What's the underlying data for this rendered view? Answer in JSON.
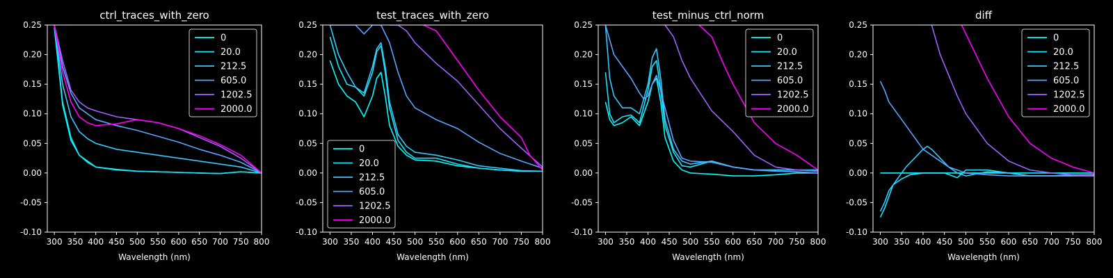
{
  "chart_data": [
    {
      "type": "line",
      "title": "ctrl_traces_with_zero",
      "xlabel": "Wavelength (nm)",
      "ylabel": "",
      "xlim": [
        283,
        800
      ],
      "ylim": [
        -0.1,
        0.25
      ],
      "xticks": [
        300,
        350,
        400,
        450,
        500,
        550,
        600,
        650,
        700,
        750,
        800
      ],
      "yticks": [
        -0.1,
        -0.05,
        0.0,
        0.05,
        0.1,
        0.15,
        0.2,
        0.25
      ],
      "legend": "top-right",
      "series": [
        {
          "name": "0",
          "color": "#00ffff",
          "x": [
            300,
            320,
            340,
            360,
            380,
            400,
            450,
            500,
            550,
            600,
            650,
            700,
            750,
            800
          ],
          "y": [
            0.245,
            0.115,
            0.055,
            0.03,
            0.02,
            0.01,
            0.006,
            0.003,
            0.002,
            0.001,
            0.0,
            -0.001,
            0.002,
            0.0
          ]
        },
        {
          "name": "20.0",
          "color": "#1ae5ff",
          "x": [
            300,
            320,
            340,
            360,
            380,
            400,
            450,
            500,
            550,
            600,
            650,
            700,
            750,
            800
          ],
          "y": [
            0.25,
            0.12,
            0.06,
            0.03,
            0.018,
            0.01,
            0.005,
            0.003,
            0.002,
            0.001,
            0.0,
            -0.001,
            0.002,
            0.0
          ]
        },
        {
          "name": "212.5",
          "color": "#33ccff",
          "x": [
            300,
            320,
            340,
            360,
            380,
            400,
            450,
            500,
            550,
            600,
            650,
            700,
            750,
            800
          ],
          "y": [
            0.25,
            0.15,
            0.095,
            0.07,
            0.058,
            0.05,
            0.04,
            0.035,
            0.03,
            0.025,
            0.02,
            0.015,
            0.01,
            0.0
          ]
        },
        {
          "name": "605.0",
          "color": "#5aa5ff",
          "x": [
            300,
            320,
            340,
            360,
            380,
            400,
            450,
            500,
            550,
            600,
            650,
            700,
            750,
            800
          ],
          "y": [
            0.25,
            0.18,
            0.135,
            0.11,
            0.1,
            0.09,
            0.08,
            0.072,
            0.062,
            0.052,
            0.04,
            0.03,
            0.018,
            0.0
          ]
        },
        {
          "name": "1202.5",
          "color": "#a061ff",
          "x": [
            300,
            320,
            340,
            360,
            380,
            400,
            450,
            500,
            550,
            600,
            650,
            700,
            750,
            800
          ],
          "y": [
            0.25,
            0.19,
            0.14,
            0.12,
            0.11,
            0.105,
            0.095,
            0.09,
            0.085,
            0.075,
            0.06,
            0.045,
            0.025,
            0.0
          ]
        },
        {
          "name": "2000.0",
          "color": "#ff00ff",
          "x": [
            300,
            320,
            340,
            360,
            380,
            400,
            450,
            500,
            550,
            600,
            650,
            700,
            750,
            800
          ],
          "y": [
            0.25,
            0.17,
            0.12,
            0.095,
            0.085,
            0.08,
            0.083,
            0.09,
            0.085,
            0.075,
            0.063,
            0.048,
            0.03,
            0.0
          ]
        }
      ]
    },
    {
      "type": "line",
      "title": "test_traces_with_zero",
      "xlabel": "Wavelength (nm)",
      "ylabel": "",
      "xlim": [
        283,
        800
      ],
      "ylim": [
        -0.1,
        0.25
      ],
      "xticks": [
        300,
        350,
        400,
        450,
        500,
        550,
        600,
        650,
        700,
        750,
        800
      ],
      "yticks": [
        -0.1,
        -0.05,
        0.0,
        0.05,
        0.1,
        0.15,
        0.2,
        0.25
      ],
      "legend": "bottom-left",
      "series": [
        {
          "name": "0",
          "color": "#00ffff",
          "x": [
            300,
            320,
            340,
            360,
            380,
            400,
            410,
            420,
            430,
            440,
            460,
            480,
            500,
            550,
            600,
            650,
            700,
            750,
            800
          ],
          "y": [
            0.19,
            0.15,
            0.13,
            0.12,
            0.095,
            0.13,
            0.16,
            0.17,
            0.13,
            0.08,
            0.045,
            0.03,
            0.022,
            0.02,
            0.012,
            0.008,
            0.005,
            0.003,
            0.003
          ]
        },
        {
          "name": "20.0",
          "color": "#1ae5ff",
          "x": [
            300,
            320,
            340,
            360,
            380,
            400,
            410,
            420,
            430,
            440,
            460,
            480,
            500,
            550,
            600,
            650,
            700,
            750,
            800
          ],
          "y": [
            0.23,
            0.18,
            0.15,
            0.145,
            0.13,
            0.17,
            0.205,
            0.215,
            0.17,
            0.11,
            0.055,
            0.035,
            0.025,
            0.025,
            0.015,
            0.008,
            0.005,
            0.003,
            0.003
          ]
        },
        {
          "name": "212.5",
          "color": "#33ccff",
          "x": [
            300,
            320,
            340,
            360,
            380,
            400,
            410,
            420,
            430,
            440,
            460,
            480,
            500,
            550,
            600,
            650,
            700,
            750,
            800
          ],
          "y": [
            0.25,
            0.2,
            0.17,
            0.145,
            0.135,
            0.18,
            0.21,
            0.22,
            0.18,
            0.12,
            0.065,
            0.045,
            0.035,
            0.03,
            0.022,
            0.012,
            0.008,
            0.004,
            0.003
          ]
        },
        {
          "name": "605.0",
          "color": "#5aa5ff",
          "x": [
            300,
            320,
            340,
            360,
            380,
            400,
            420,
            440,
            460,
            480,
            500,
            550,
            600,
            650,
            700,
            750,
            800
          ],
          "y": [
            0.25,
            0.25,
            0.25,
            0.25,
            0.235,
            0.25,
            0.25,
            0.22,
            0.17,
            0.13,
            0.11,
            0.09,
            0.075,
            0.052,
            0.033,
            0.02,
            0.008
          ]
        },
        {
          "name": "1202.5",
          "color": "#a061ff",
          "x": [
            440,
            460,
            480,
            500,
            550,
            600,
            650,
            700,
            750,
            800
          ],
          "y": [
            0.25,
            0.25,
            0.24,
            0.22,
            0.185,
            0.155,
            0.115,
            0.075,
            0.042,
            0.01
          ]
        },
        {
          "name": "2000.0",
          "color": "#ff00ff",
          "x": [
            520,
            550,
            600,
            650,
            700,
            750,
            770,
            800
          ],
          "y": [
            0.25,
            0.24,
            0.19,
            0.14,
            0.095,
            0.06,
            0.03,
            0.005
          ]
        }
      ]
    },
    {
      "type": "line",
      "title": "test_minus_ctrl_norm",
      "xlabel": "Wavelength (nm)",
      "ylabel": "",
      "xlim": [
        283,
        800
      ],
      "ylim": [
        -0.1,
        0.25
      ],
      "xticks": [
        300,
        350,
        400,
        450,
        500,
        550,
        600,
        650,
        700,
        750,
        800
      ],
      "yticks": [
        -0.1,
        -0.05,
        0.0,
        0.05,
        0.1,
        0.15,
        0.2,
        0.25
      ],
      "legend": "top-right",
      "series": [
        {
          "name": "0",
          "color": "#00ffff",
          "x": [
            300,
            310,
            320,
            340,
            360,
            380,
            400,
            410,
            420,
            430,
            440,
            460,
            480,
            500,
            550,
            600,
            650,
            700,
            750,
            800
          ],
          "y": [
            0.12,
            0.09,
            0.08,
            0.085,
            0.095,
            0.08,
            0.12,
            0.15,
            0.16,
            0.12,
            0.06,
            0.02,
            0.005,
            0.0,
            -0.002,
            -0.005,
            -0.005,
            -0.003,
            0.0,
            0.0
          ]
        },
        {
          "name": "20.0",
          "color": "#1ae5ff",
          "x": [
            300,
            310,
            320,
            340,
            360,
            380,
            400,
            410,
            420,
            430,
            440,
            460,
            480,
            500,
            550,
            600,
            650,
            700,
            750,
            800
          ],
          "y": [
            0.17,
            0.1,
            0.085,
            0.095,
            0.098,
            0.085,
            0.14,
            0.18,
            0.19,
            0.14,
            0.08,
            0.035,
            0.012,
            0.01,
            0.02,
            0.01,
            0.005,
            0.005,
            0.005,
            0.005
          ]
        },
        {
          "name": "212.5",
          "color": "#33ccff",
          "x": [
            300,
            310,
            320,
            340,
            360,
            380,
            400,
            410,
            420,
            430,
            440,
            460,
            480,
            500,
            550,
            600,
            650,
            700,
            750,
            800
          ],
          "y": [
            0.25,
            0.16,
            0.13,
            0.11,
            0.11,
            0.1,
            0.15,
            0.195,
            0.21,
            0.16,
            0.09,
            0.04,
            0.02,
            0.015,
            0.02,
            0.01,
            0.005,
            0.005,
            0.005,
            0.003
          ]
        },
        {
          "name": "605.0",
          "color": "#5aa5ff",
          "x": [
            300,
            320,
            340,
            360,
            380,
            390,
            400,
            410,
            420,
            440,
            460,
            480,
            500,
            550,
            600,
            650,
            700,
            750,
            800
          ],
          "y": [
            0.25,
            0.2,
            0.18,
            0.16,
            0.135,
            0.125,
            0.13,
            0.15,
            0.165,
            0.11,
            0.055,
            0.025,
            0.02,
            0.018,
            0.01,
            0.005,
            0.003,
            0.002,
            0.0
          ]
        },
        {
          "name": "1202.5",
          "color": "#a061ff",
          "x": [
            440,
            460,
            480,
            500,
            550,
            600,
            650,
            700,
            750,
            800
          ],
          "y": [
            0.25,
            0.23,
            0.19,
            0.16,
            0.105,
            0.07,
            0.03,
            0.01,
            0.005,
            0.003
          ]
        },
        {
          "name": "2000.0",
          "color": "#ff00ff",
          "x": [
            520,
            550,
            580,
            600,
            650,
            700,
            750,
            800
          ],
          "y": [
            0.25,
            0.23,
            0.18,
            0.15,
            0.085,
            0.05,
            0.03,
            0.005
          ]
        }
      ]
    },
    {
      "type": "line",
      "title": "diff",
      "xlabel": "Wavelength (nm)",
      "ylabel": "",
      "xlim": [
        283,
        800
      ],
      "ylim": [
        -0.1,
        0.25
      ],
      "xticks": [
        300,
        350,
        400,
        450,
        500,
        550,
        600,
        650,
        700,
        750,
        800
      ],
      "yticks": [
        -0.1,
        -0.05,
        0.0,
        0.05,
        0.1,
        0.15,
        0.2,
        0.25
      ],
      "legend": "top-right",
      "series": [
        {
          "name": "0",
          "color": "#00ffff",
          "x": [
            300,
            800
          ],
          "y": [
            0.0,
            0.0
          ]
        },
        {
          "name": "20.0",
          "color": "#1ae5ff",
          "x": [
            300,
            310,
            320,
            330,
            350,
            370,
            400,
            420,
            450,
            480,
            500,
            550,
            600,
            650,
            700,
            750,
            800
          ],
          "y": [
            -0.075,
            -0.06,
            -0.04,
            -0.02,
            -0.01,
            -0.003,
            0.0,
            0.0,
            0.0,
            -0.008,
            0.005,
            0.005,
            0.0,
            -0.005,
            -0.005,
            -0.005,
            -0.003
          ]
        },
        {
          "name": "212.5",
          "color": "#33ccff",
          "x": [
            300,
            310,
            320,
            340,
            360,
            380,
            400,
            410,
            420,
            440,
            460,
            480,
            500,
            550,
            600,
            650,
            700,
            750,
            800
          ],
          "y": [
            -0.065,
            -0.05,
            -0.03,
            -0.01,
            0.01,
            0.025,
            0.04,
            0.045,
            0.04,
            0.025,
            0.01,
            0.0,
            -0.005,
            0.002,
            0.0,
            -0.005,
            -0.005,
            -0.003,
            -0.003
          ]
        },
        {
          "name": "605.0",
          "color": "#5aa5ff",
          "x": [
            300,
            310,
            320,
            340,
            360,
            380,
            400,
            420,
            440,
            460,
            480,
            500,
            550,
            600,
            650,
            700,
            750,
            800
          ],
          "y": [
            0.155,
            0.14,
            0.12,
            0.1,
            0.08,
            0.06,
            0.04,
            0.03,
            0.02,
            0.01,
            0.005,
            0.0,
            -0.003,
            -0.005,
            -0.005,
            -0.005,
            -0.005,
            -0.005
          ]
        },
        {
          "name": "1202.5",
          "color": "#a061ff",
          "x": [
            420,
            440,
            460,
            480,
            500,
            550,
            600,
            650,
            700,
            750,
            800
          ],
          "y": [
            0.25,
            0.2,
            0.165,
            0.13,
            0.1,
            0.05,
            0.02,
            0.005,
            0.0,
            -0.003,
            -0.005
          ]
        },
        {
          "name": "2000.0",
          "color": "#ff00ff",
          "x": [
            490,
            500,
            550,
            600,
            650,
            700,
            750,
            800
          ],
          "y": [
            0.25,
            0.235,
            0.16,
            0.095,
            0.05,
            0.025,
            0.01,
            0.0
          ]
        }
      ]
    }
  ]
}
